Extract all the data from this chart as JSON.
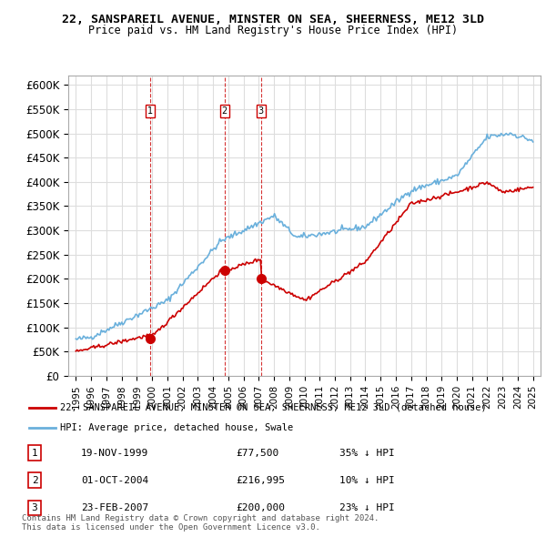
{
  "title": "22, SANSPAREIL AVENUE, MINSTER ON SEA, SHEERNESS, ME12 3LD",
  "subtitle": "Price paid vs. HM Land Registry's House Price Index (HPI)",
  "xlabel": "",
  "ylabel": "",
  "ylim": [
    0,
    620000
  ],
  "yticks": [
    0,
    50000,
    100000,
    150000,
    200000,
    250000,
    300000,
    350000,
    400000,
    450000,
    500000,
    550000,
    600000
  ],
  "ytick_labels": [
    "£0",
    "£50K",
    "£100K",
    "£150K",
    "£200K",
    "£250K",
    "£300K",
    "£350K",
    "£400K",
    "£450K",
    "£500K",
    "£550K",
    "£600K"
  ],
  "xlim_start": 1994.5,
  "xlim_end": 2025.5,
  "hpi_color": "#6ab0dc",
  "price_color": "#cc0000",
  "vline_color": "#cc0000",
  "transaction_color": "#cc0000",
  "legend_box_color": "#cc0000",
  "legend_hpi_color": "#6ab0dc",
  "transactions": [
    {
      "num": 1,
      "date": "19-NOV-1999",
      "price": 77500,
      "pct": "35%",
      "dir": "↓",
      "year": 1999.88
    },
    {
      "num": 2,
      "date": "01-OCT-2004",
      "price": 216995,
      "pct": "10%",
      "dir": "↓",
      "year": 2004.75
    },
    {
      "num": 3,
      "date": "23-FEB-2007",
      "price": 200000,
      "pct": "23%",
      "dir": "↓",
      "year": 2007.14
    }
  ],
  "footer": "Contains HM Land Registry data © Crown copyright and database right 2024.\nThis data is licensed under the Open Government Licence v3.0.",
  "legend_line1": "22, SANSPAREIL AVENUE, MINSTER ON SEA, SHEERNESS, ME12 3LD (detached house)",
  "legend_line2": "HPI: Average price, detached house, Swale"
}
